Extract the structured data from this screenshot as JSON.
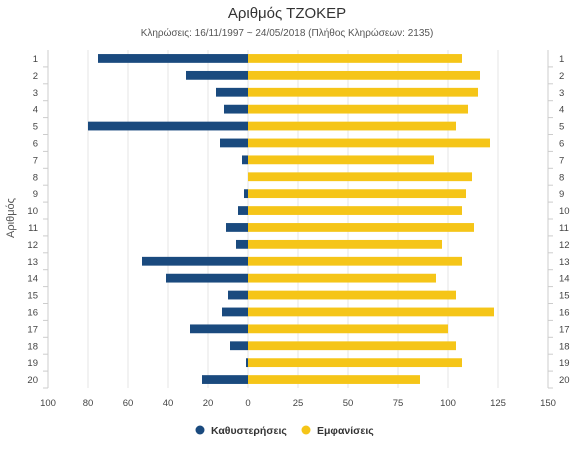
{
  "chart_data": {
    "type": "bar",
    "orientation": "horizontal",
    "title": "Αριθμός ΤΖΟΚΕΡ",
    "subtitle": "Κληρώσεις: 16/11/1997 ~ 24/05/2018 (Πλήθος Κληρώσεων: 2135)",
    "ylabel": "Αριθμός",
    "categories": [
      "1",
      "2",
      "3",
      "4",
      "5",
      "6",
      "7",
      "8",
      "9",
      "10",
      "11",
      "12",
      "13",
      "14",
      "15",
      "16",
      "17",
      "18",
      "19",
      "20"
    ],
    "series": [
      {
        "name": "Καθυστερήσεις",
        "color": "#1a4a7e",
        "values": [
          -75,
          -31,
          -16,
          -12,
          -80,
          -14,
          -3,
          0,
          -2,
          -5,
          -11,
          -6,
          -53,
          -41,
          -10,
          -13,
          -29,
          -9,
          -1,
          -23
        ]
      },
      {
        "name": "Εμφανίσεις",
        "color": "#f5c518",
        "values": [
          107,
          116,
          115,
          110,
          104,
          121,
          93,
          112,
          109,
          107,
          113,
          97,
          107,
          94,
          104,
          123,
          100,
          104,
          107,
          86
        ]
      }
    ],
    "xlim": [
      -100,
      150
    ],
    "xticks": [
      -100,
      -80,
      -60,
      -40,
      -20,
      0,
      25,
      50,
      75,
      100,
      125,
      150
    ],
    "xtick_labels": [
      "100",
      "80",
      "60",
      "40",
      "20",
      "0",
      "25",
      "50",
      "75",
      "100",
      "125",
      "150"
    ],
    "grid": true,
    "legend": "bottom-center"
  }
}
